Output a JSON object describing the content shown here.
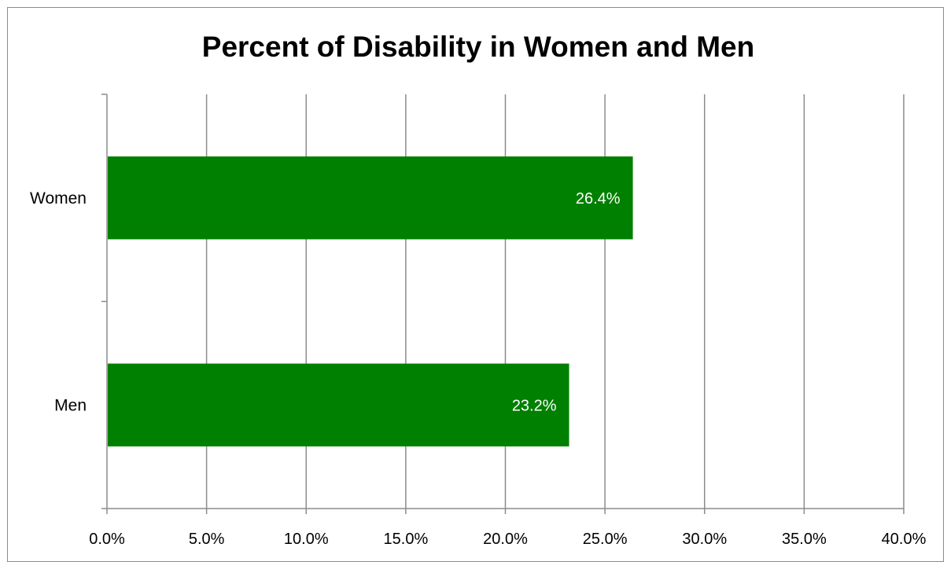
{
  "chart_data": {
    "type": "bar",
    "orientation": "horizontal",
    "title": "Percent of Disability in Women and Men",
    "categories": [
      "Women",
      "Men"
    ],
    "values": [
      26.4,
      23.2
    ],
    "data_labels": [
      "26.4%",
      "23.2%"
    ],
    "xlim": [
      0,
      40
    ],
    "x_ticks": [
      0,
      5,
      10,
      15,
      20,
      25,
      30,
      35,
      40
    ],
    "x_tick_labels": [
      "0.0%",
      "5.0%",
      "10.0%",
      "15.0%",
      "20.0%",
      "25.0%",
      "30.0%",
      "35.0%",
      "40.0%"
    ],
    "xlabel": "",
    "ylabel": "",
    "grid": "vertical",
    "legend": "none",
    "bar_color": "#008000",
    "data_label_color": "#ffffff"
  }
}
